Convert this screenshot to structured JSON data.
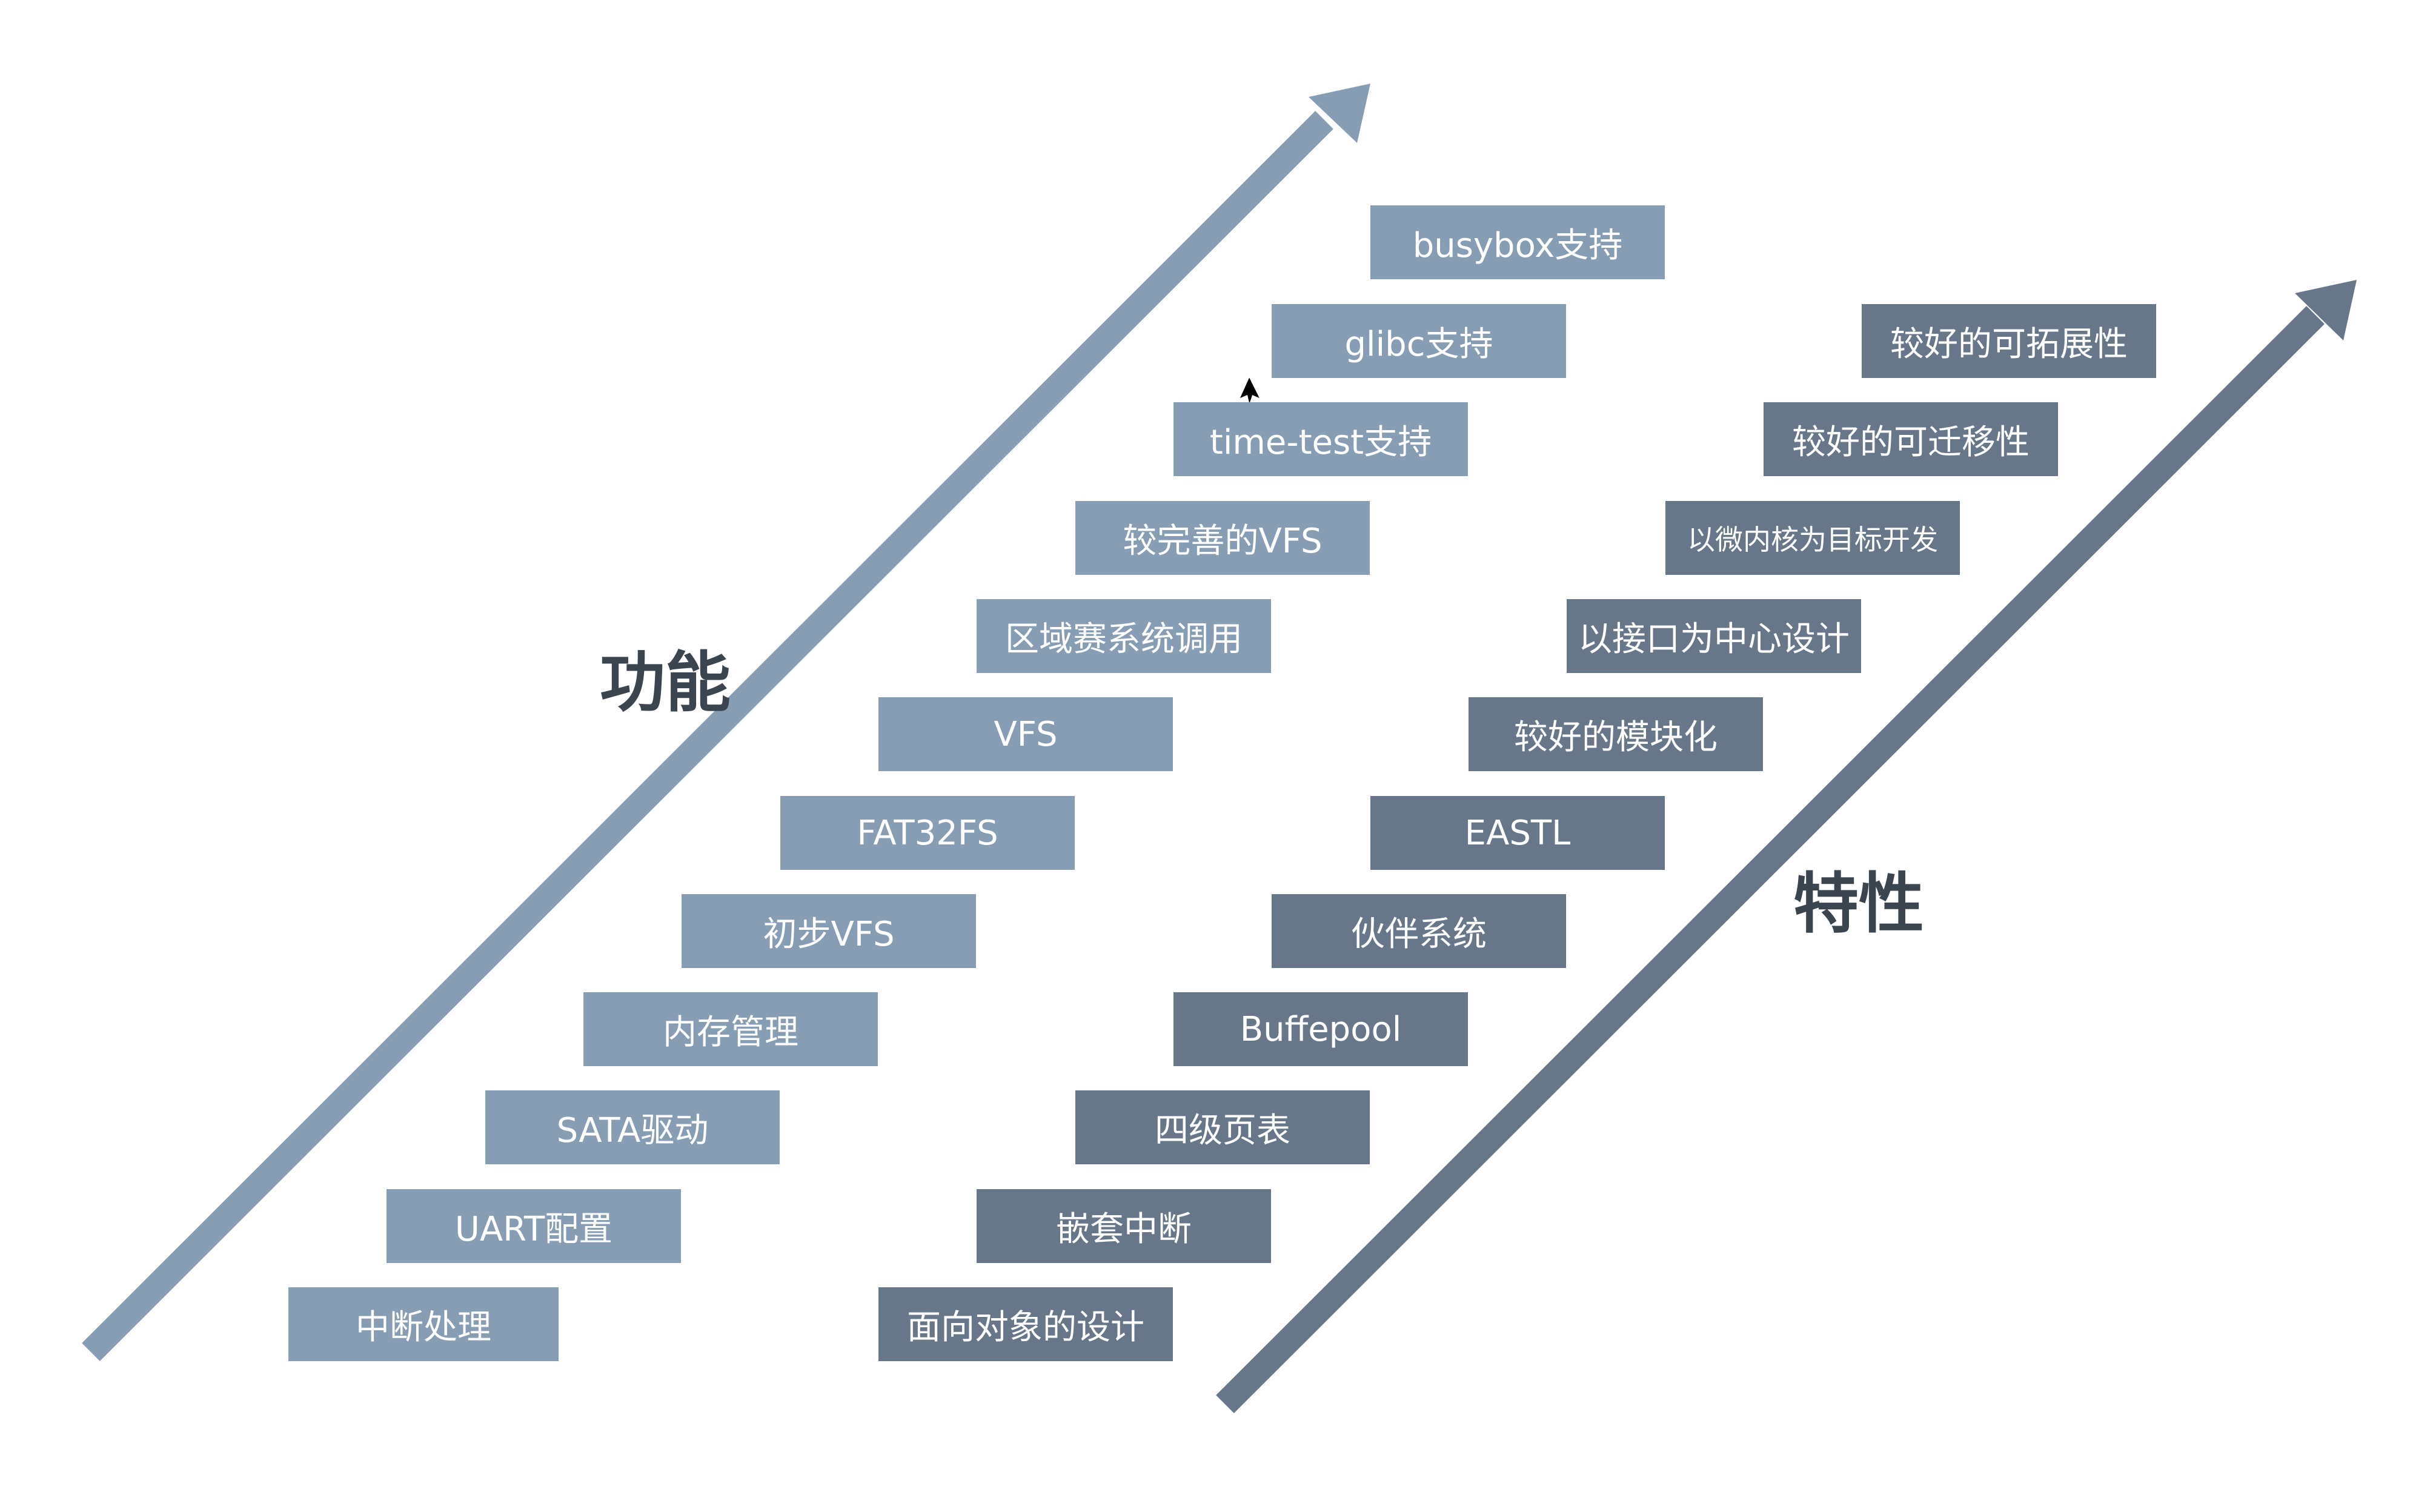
{
  "diagram": {
    "functions_label": "功能",
    "features_label": "特性",
    "functions": [
      "中断处理",
      "UART配置",
      "SATA驱动",
      "内存管理",
      "初步VFS",
      "FAT32FS",
      "VFS",
      "区域赛系统调用",
      "较完善的VFS",
      "time-test支持",
      "glibc支持",
      "busybox支持"
    ],
    "features": [
      "面向对象的设计",
      "嵌套中断",
      "四级页表",
      "Buffepool",
      "伙伴系统",
      "EASTL",
      "较好的模块化",
      "以接口为中心设计",
      "以微内核为目标开发",
      "较好的可迁移性",
      "较好的可拓展性"
    ],
    "colors": {
      "function_box": "#879db4",
      "feature_box": "#677789",
      "function_arrow": "#879db4",
      "feature_arrow": "#677789",
      "label_text": "#3b4550"
    }
  }
}
